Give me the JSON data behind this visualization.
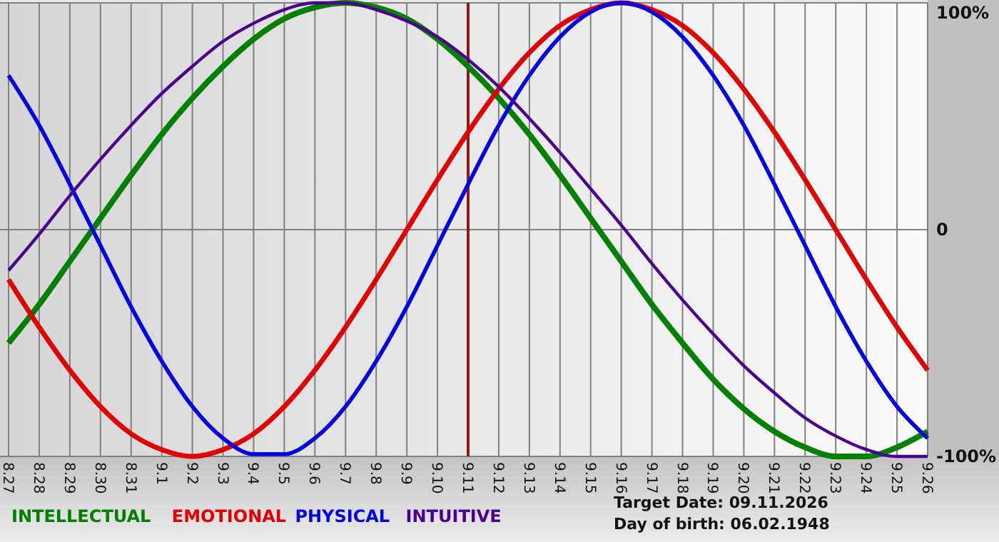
{
  "chart_data": {
    "type": "line",
    "categories": [
      "8.27",
      "8.28",
      "8.29",
      "8.30",
      "8.31",
      "9.1",
      "9.2",
      "9.3",
      "9.4",
      "9.5",
      "9.6",
      "9.7",
      "9.8",
      "9.9",
      "9.10",
      "9.11",
      "9.12",
      "9.13",
      "9.14",
      "9.15",
      "9.16",
      "9.17",
      "9.18",
      "9.19",
      "9.20",
      "9.21",
      "9.22",
      "9.23",
      "9.24",
      "9.25",
      "9.26"
    ],
    "series": [
      {
        "name": "INTELLECTUAL",
        "color": "#008000",
        "values": [
          -50,
          -33,
          -14,
          5,
          24,
          42,
          58,
          72,
          84,
          93,
          98,
          100,
          98,
          93,
          84,
          72,
          58,
          42,
          24,
          5,
          -14,
          -33,
          -50,
          -66,
          -79,
          -89,
          -96,
          -100,
          -100,
          -96,
          -89
        ]
      },
      {
        "name": "EMOTIONAL",
        "color": "#e00000",
        "values": [
          -22,
          -43,
          -62,
          -78,
          -90,
          -97,
          -100,
          -97,
          -90,
          -78,
          -62,
          -43,
          -22,
          0,
          22,
          43,
          62,
          78,
          90,
          97,
          100,
          97,
          90,
          78,
          62,
          43,
          22,
          0,
          -22,
          -43,
          -62
        ]
      },
      {
        "name": "PHYSICAL",
        "color": "#0000e0",
        "values": [
          68,
          46,
          20,
          -7,
          -34,
          -58,
          -78,
          -92,
          -99,
          -99,
          -92,
          -78,
          -58,
          -34,
          -7,
          20,
          46,
          68,
          85,
          96,
          100,
          96,
          85,
          68,
          46,
          20,
          -7,
          -34,
          -58,
          -78,
          -92
        ]
      },
      {
        "name": "INTUITIVE",
        "color": "#4b0090",
        "values": [
          -18,
          -2,
          15,
          31,
          46,
          60,
          72,
          83,
          91,
          97,
          100,
          100,
          97,
          92,
          85,
          75,
          63,
          49,
          34,
          18,
          2,
          -15,
          -31,
          -46,
          -60,
          -72,
          -83,
          -91,
          -97,
          -100,
          -100
        ]
      }
    ],
    "ylim": [
      -100,
      100
    ],
    "yticks": [
      {
        "value": -100,
        "label": "-100%"
      },
      0,
      {
        "value": 100,
        "label": "100%"
      }
    ],
    "grid": true,
    "legend": "bottom",
    "ref_lines": [
      {
        "axis": "x",
        "value": "9.11",
        "color": "#8b1a1a"
      }
    ],
    "annotations": [
      "Target Date: 09.11.2026",
      "Day of birth: 06.02.1948"
    ]
  }
}
